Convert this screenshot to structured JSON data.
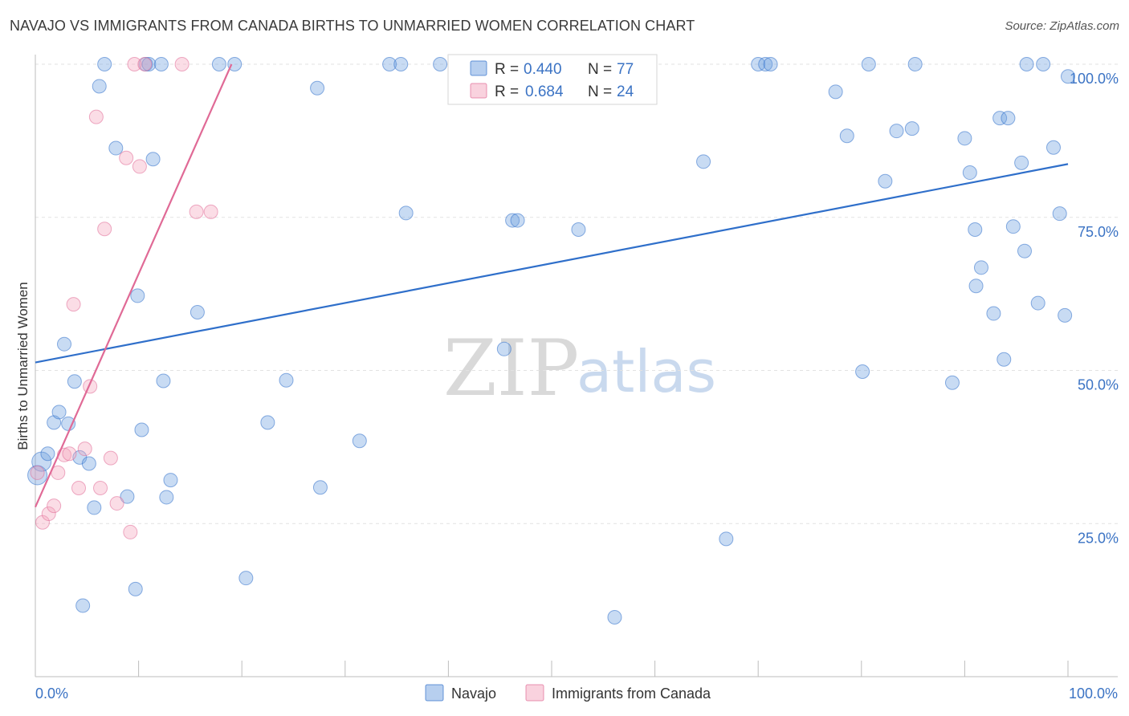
{
  "header": {
    "title": "NAVAJO VS IMMIGRANTS FROM CANADA BIRTHS TO UNMARRIED WOMEN CORRELATION CHART",
    "source": "Source: ZipAtlas.com"
  },
  "watermark": {
    "zip": "ZIP",
    "atlas": "atlas"
  },
  "legend": {
    "rows": [
      {
        "r_label": "R =",
        "r_value": "0.440",
        "n_label": "N =",
        "n_value": "77"
      },
      {
        "r_label": "R =",
        "r_value": "0.684",
        "n_label": "N =",
        "n_value": "24"
      }
    ]
  },
  "chart_data": {
    "type": "scatter",
    "xlabel": "",
    "ylabel": "Births to Unmarried Women",
    "xlim": [
      0,
      100
    ],
    "ylim": [
      0,
      100
    ],
    "x_tick_labels": [
      "0.0%",
      "100.0%"
    ],
    "y_tick_labels": [
      "25.0%",
      "50.0%",
      "75.0%",
      "100.0%"
    ],
    "y_ticks": [
      25,
      50,
      75,
      100
    ],
    "colors": {
      "navajo": "#6fa0e0",
      "canada": "#f4a6bd",
      "navajo_line": "#2f6fca",
      "canada_line": "#e06a96"
    },
    "series": [
      {
        "name": "Navajo",
        "trend": {
          "x": [
            0,
            100
          ],
          "y": [
            51.3,
            83.7
          ]
        },
        "points": [
          [
            0.2,
            32.9
          ],
          [
            0.6,
            35.1
          ],
          [
            1.2,
            36.4
          ],
          [
            1.8,
            41.5
          ],
          [
            2.3,
            43.2
          ],
          [
            2.8,
            54.3
          ],
          [
            3.2,
            41.3
          ],
          [
            3.8,
            48.2
          ],
          [
            4.3,
            35.8
          ],
          [
            4.6,
            11.6
          ],
          [
            5.2,
            34.8
          ],
          [
            5.7,
            27.6
          ],
          [
            6.2,
            96.4
          ],
          [
            6.7,
            100.0
          ],
          [
            7.8,
            86.3
          ],
          [
            8.9,
            29.4
          ],
          [
            9.7,
            14.3
          ],
          [
            9.9,
            62.2
          ],
          [
            10.3,
            40.3
          ],
          [
            10.7,
            100.0
          ],
          [
            11.0,
            100.0
          ],
          [
            11.4,
            84.5
          ],
          [
            12.2,
            100.0
          ],
          [
            12.4,
            48.3
          ],
          [
            12.7,
            29.3
          ],
          [
            13.1,
            32.1
          ],
          [
            15.7,
            59.5
          ],
          [
            17.8,
            100.0
          ],
          [
            19.3,
            100.0
          ],
          [
            20.4,
            16.1
          ],
          [
            22.5,
            41.5
          ],
          [
            24.3,
            48.4
          ],
          [
            27.3,
            96.1
          ],
          [
            27.6,
            30.9
          ],
          [
            31.4,
            38.5
          ],
          [
            34.3,
            100.0
          ],
          [
            35.4,
            100.0
          ],
          [
            35.9,
            75.7
          ],
          [
            39.2,
            100.0
          ],
          [
            45.4,
            53.5
          ],
          [
            46.2,
            74.5
          ],
          [
            46.7,
            74.5
          ],
          [
            52.6,
            73.0
          ],
          [
            56.1,
            9.7
          ],
          [
            64.7,
            84.1
          ],
          [
            66.9,
            22.5
          ],
          [
            70.0,
            100.0
          ],
          [
            70.7,
            100.0
          ],
          [
            71.2,
            100.0
          ],
          [
            77.5,
            95.5
          ],
          [
            78.6,
            88.3
          ],
          [
            80.1,
            49.8
          ],
          [
            80.7,
            100.0
          ],
          [
            82.3,
            80.9
          ],
          [
            83.4,
            89.1
          ],
          [
            84.9,
            89.5
          ],
          [
            85.2,
            100.0
          ],
          [
            88.8,
            48.0
          ],
          [
            90.0,
            87.9
          ],
          [
            90.5,
            82.3
          ],
          [
            91.0,
            73.0
          ],
          [
            91.1,
            63.8
          ],
          [
            91.6,
            66.8
          ],
          [
            92.8,
            59.3
          ],
          [
            93.4,
            91.2
          ],
          [
            93.8,
            51.8
          ],
          [
            94.2,
            91.2
          ],
          [
            94.7,
            73.5
          ],
          [
            95.5,
            83.9
          ],
          [
            95.8,
            69.5
          ],
          [
            96.0,
            100.0
          ],
          [
            97.1,
            61.0
          ],
          [
            97.6,
            100.0
          ],
          [
            98.6,
            86.4
          ],
          [
            99.2,
            75.6
          ],
          [
            99.7,
            59.0
          ],
          [
            100.0,
            98.0
          ]
        ]
      },
      {
        "name": "Immigrants from Canada",
        "trend": {
          "x": [
            0,
            19.0
          ],
          "y": [
            27.7,
            100.0
          ]
        },
        "points": [
          [
            0.2,
            33.3
          ],
          [
            0.7,
            25.2
          ],
          [
            1.3,
            26.6
          ],
          [
            1.8,
            27.9
          ],
          [
            2.2,
            33.3
          ],
          [
            2.8,
            36.2
          ],
          [
            3.3,
            36.4
          ],
          [
            3.7,
            60.8
          ],
          [
            4.2,
            30.8
          ],
          [
            4.8,
            37.2
          ],
          [
            5.3,
            47.4
          ],
          [
            5.9,
            91.4
          ],
          [
            6.3,
            30.8
          ],
          [
            6.7,
            73.1
          ],
          [
            7.3,
            35.7
          ],
          [
            7.9,
            28.3
          ],
          [
            8.8,
            84.7
          ],
          [
            9.2,
            23.6
          ],
          [
            9.6,
            100.0
          ],
          [
            10.1,
            83.3
          ],
          [
            10.6,
            100.0
          ],
          [
            14.2,
            100.0
          ],
          [
            15.6,
            75.9
          ],
          [
            17.0,
            75.9
          ]
        ]
      }
    ]
  },
  "bottom_legend": {
    "items": [
      {
        "label": "Navajo"
      },
      {
        "label": "Immigrants from Canada"
      }
    ]
  }
}
